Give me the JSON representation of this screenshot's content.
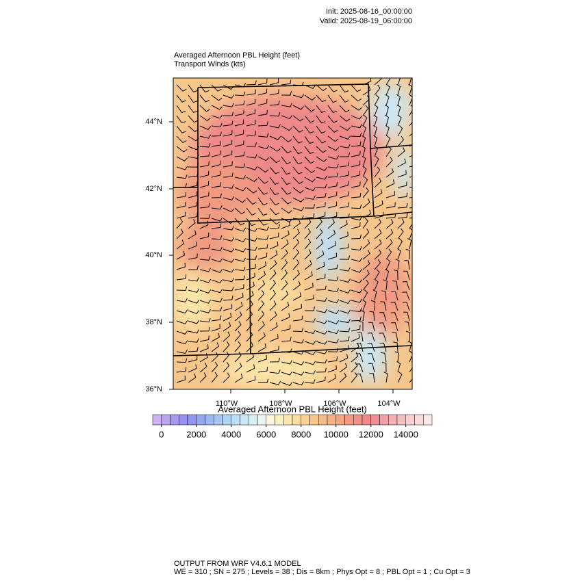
{
  "header": {
    "init": "Init: 2025-08-16_00:00:00",
    "valid": "Valid: 2025-08-19_06:00:00"
  },
  "map": {
    "title": "Averaged Afternoon PBL Height   (feet)",
    "subtitle": "Transport Winds   (kts)",
    "lat_labels": [
      "44°N",
      "42°N",
      "40°N",
      "38°N",
      "36°N"
    ],
    "lon_labels": [
      "110°W",
      "108°W",
      "106°W",
      "104°W"
    ]
  },
  "colorbar": {
    "title": "Averaged Afternoon PBL Height  (feet)",
    "range": [
      -500,
      15500
    ],
    "ticks": [
      0,
      2000,
      4000,
      6000,
      8000,
      10000,
      12000,
      14000
    ],
    "colors": [
      "#cdb0f2",
      "#bba4f0",
      "#a998ef",
      "#9891ef",
      "#8f96f0",
      "#92a6f2",
      "#9cb6f3",
      "#a6c5f4",
      "#afd3f5",
      "#bcdff6",
      "#cae8f6",
      "#daf0f6",
      "#ebf6f3",
      "#fbf6dc",
      "#fcefc0",
      "#fce6aa",
      "#fbdc9b",
      "#f9d192",
      "#f7c68b",
      "#f5bb86",
      "#f3b082",
      "#f1a580",
      "#f09a82",
      "#ef9086",
      "#ee888a",
      "#ed8c94",
      "#eea0a6",
      "#f0b0b4",
      "#f3c0c2",
      "#f6cfd0",
      "#f9dddd",
      "#fbe9e9"
    ]
  },
  "footer": {
    "line1": "OUTPUT FROM WRF V4.6.1 MODEL",
    "line2": "WE = 310 ; SN = 275 ; Levels = 38 ; Dis = 8km ; Phys Opt = 8 ; PBL Opt = 1 ; Cu Opt = 3"
  }
}
